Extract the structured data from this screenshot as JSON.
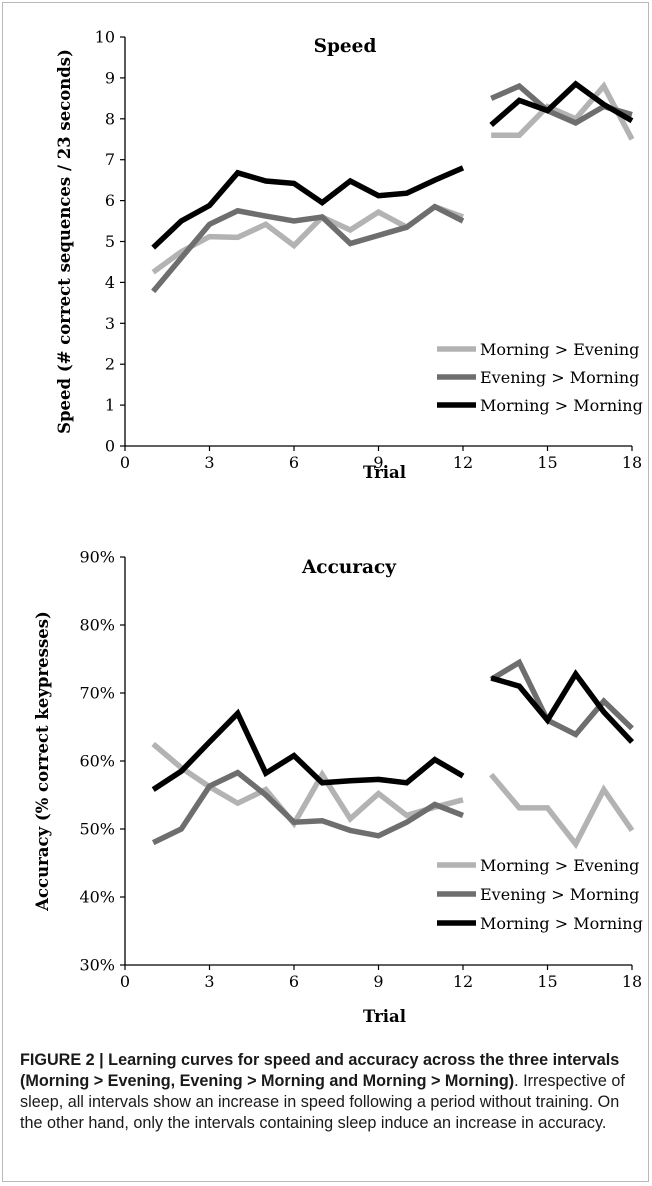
{
  "chart_data": [
    {
      "type": "line",
      "title": "Speed",
      "xlabel": "Trial",
      "ylabel": "Speed (# correct sequences / 23 seconds)",
      "xlim": [
        0,
        18
      ],
      "ylim": [
        0,
        10
      ],
      "x_ticks": [
        0,
        3,
        6,
        9,
        12,
        15,
        18
      ],
      "y_ticks": [
        0,
        1,
        2,
        3,
        4,
        5,
        6,
        7,
        8,
        9,
        10
      ],
      "y_tick_labels": [
        "0",
        "1",
        "2",
        "3",
        "4",
        "5",
        "6",
        "7",
        "8",
        "9",
        "10"
      ],
      "grid": false,
      "legend_position": "bottom-right",
      "series": [
        {
          "name": "Morning > Evening",
          "color": "#b3b3b3",
          "segments": [
            {
              "x": [
                1,
                2,
                3,
                4,
                5,
                6,
                7,
                8,
                9,
                10,
                11,
                12
              ],
              "y": [
                4.25,
                4.75,
                5.12,
                5.1,
                5.42,
                4.9,
                5.6,
                5.28,
                5.72,
                5.35,
                5.85,
                5.6
              ]
            },
            {
              "x": [
                13,
                14,
                15,
                16,
                17,
                18
              ],
              "y": [
                7.6,
                7.6,
                8.3,
                8.0,
                8.8,
                7.5
              ]
            }
          ]
        },
        {
          "name": "Evening > Morning",
          "color": "#6e6e6e",
          "segments": [
            {
              "x": [
                1,
                2,
                3,
                4,
                5,
                6,
                7,
                8,
                9,
                10,
                11,
                12
              ],
              "y": [
                3.78,
                4.6,
                5.42,
                5.75,
                5.62,
                5.5,
                5.6,
                4.95,
                5.15,
                5.35,
                5.85,
                5.5
              ]
            },
            {
              "x": [
                13,
                14,
                15,
                16,
                17,
                18
              ],
              "y": [
                8.5,
                8.8,
                8.2,
                7.9,
                8.3,
                8.1
              ]
            }
          ]
        },
        {
          "name": "Morning > Morning",
          "color": "#000000",
          "segments": [
            {
              "x": [
                1,
                2,
                3,
                4,
                5,
                6,
                7,
                8,
                9,
                10,
                11,
                12
              ],
              "y": [
                4.85,
                5.5,
                5.88,
                6.68,
                6.48,
                6.42,
                5.95,
                6.48,
                6.12,
                6.18,
                6.5,
                6.8
              ]
            },
            {
              "x": [
                13,
                14,
                15,
                16,
                17,
                18
              ],
              "y": [
                7.85,
                8.45,
                8.2,
                8.85,
                8.35,
                7.95
              ]
            }
          ]
        }
      ]
    },
    {
      "type": "line",
      "title": "Accuracy",
      "xlabel": "Trial",
      "ylabel": "Accuracy (% correct keypresses)",
      "xlim": [
        0,
        18
      ],
      "ylim": [
        30,
        90
      ],
      "x_ticks": [
        0,
        3,
        6,
        9,
        12,
        15,
        18
      ],
      "y_ticks": [
        30,
        40,
        50,
        60,
        70,
        80,
        90
      ],
      "y_tick_labels": [
        "30%",
        "40%",
        "50%",
        "60%",
        "70%",
        "80%",
        "90%"
      ],
      "grid": false,
      "legend_position": "bottom-right",
      "series": [
        {
          "name": "Morning > Evening",
          "color": "#b3b3b3",
          "segments": [
            {
              "x": [
                1,
                2,
                3,
                4,
                5,
                6,
                7,
                8,
                9,
                10,
                11,
                12
              ],
              "y": [
                62.5,
                59.0,
                56.2,
                53.8,
                55.8,
                50.8,
                58.0,
                51.5,
                55.2,
                52.0,
                53.2,
                54.3
              ]
            },
            {
              "x": [
                13,
                14,
                15,
                16,
                17,
                18
              ],
              "y": [
                58.0,
                53.1,
                53.1,
                47.8,
                55.8,
                49.8
              ]
            }
          ]
        },
        {
          "name": "Evening > Morning",
          "color": "#6e6e6e",
          "segments": [
            {
              "x": [
                1,
                2,
                3,
                4,
                5,
                6,
                7,
                8,
                9,
                10,
                11,
                12
              ],
              "y": [
                48.0,
                50.0,
                56.3,
                58.3,
                55.0,
                51.0,
                51.2,
                49.8,
                49.0,
                51.0,
                53.6,
                52.0
              ]
            },
            {
              "x": [
                13,
                14,
                15,
                16,
                17,
                18
              ],
              "y": [
                72.0,
                74.5,
                66.0,
                63.9,
                68.8,
                64.8
              ]
            }
          ]
        },
        {
          "name": "Morning > Morning",
          "color": "#000000",
          "segments": [
            {
              "x": [
                1,
                2,
                3,
                4,
                5,
                6,
                7,
                8,
                9,
                10,
                11,
                12
              ],
              "y": [
                55.8,
                58.5,
                62.8,
                67.0,
                58.2,
                60.8,
                56.8,
                57.1,
                57.3,
                56.8,
                60.2,
                57.8
              ]
            },
            {
              "x": [
                13,
                14,
                15,
                16,
                17,
                18
              ],
              "y": [
                72.2,
                71.0,
                66.0,
                72.8,
                67.2,
                62.8
              ]
            }
          ]
        }
      ]
    }
  ],
  "caption": {
    "bold": "FIGURE 2 | Learning curves for speed and accuracy across the three intervals (Morning > Evening, Evening > Morning and Morning > Morning)",
    "text": ". Irrespective of sleep, all intervals show an increase in speed following a period without training. On the other hand, only the intervals containing sleep induce an increase in accuracy."
  }
}
